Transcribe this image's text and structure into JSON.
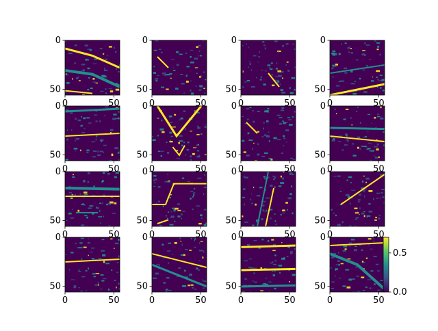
{
  "chart_data": {
    "type": "heatmap",
    "layout": "grid of 16 feature-map panels (4 rows x 4 columns)",
    "colormap": "viridis",
    "colors": {
      "low": "#440154",
      "mid": "#21908d",
      "high": "#fde725"
    },
    "panel_axis_ticks": {
      "x": [
        "0",
        "50"
      ],
      "y": [
        "0",
        "50"
      ]
    },
    "panel_axis_ticks_values": {
      "x": [
        0,
        50
      ],
      "y": [
        0,
        50
      ]
    },
    "panel_extent": {
      "xlim": [
        0,
        56
      ],
      "ylim": [
        56,
        0
      ]
    },
    "colorbar": {
      "ticks": [
        "0.0",
        "0.5"
      ],
      "tick_values": [
        0.0,
        0.5
      ],
      "range": [
        0,
        0.7
      ]
    },
    "panels": [
      {
        "pattern": "diagonal arcs"
      },
      {
        "pattern": "sparse dots"
      },
      {
        "pattern": "scattered strokes"
      },
      {
        "pattern": "bright diagonal lower"
      },
      {
        "pattern": "horizontal bands"
      },
      {
        "pattern": "v shape"
      },
      {
        "pattern": "sparse dots"
      },
      {
        "pattern": "horizontal band mid"
      },
      {
        "pattern": "horizontal lines"
      },
      {
        "pattern": "step line"
      },
      {
        "pattern": "vertical strokes"
      },
      {
        "pattern": "diagonal upper right"
      },
      {
        "pattern": "horizontal strokes"
      },
      {
        "pattern": "diagonal strokes"
      },
      {
        "pattern": "three bright rows"
      },
      {
        "pattern": "arc with dots"
      }
    ]
  }
}
